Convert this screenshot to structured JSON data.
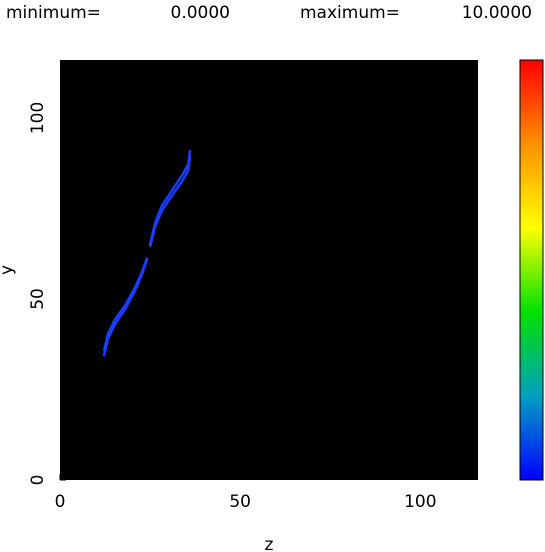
{
  "chart_data": {
    "type": "line",
    "minimum": {
      "label": "minimum=",
      "value": {
        "value": 0,
        "label": "0.0000"
      }
    },
    "maximum": {
      "label": "maximum=",
      "value": {
        "value": 10,
        "label": "10.0000"
      }
    },
    "xlabel": "z",
    "ylabel": "y",
    "x": [
      12.2,
      13.3,
      15.3,
      18.1,
      20.8,
      22.8,
      24.2,
      null,
      25.0,
      26.4,
      28.3,
      31.1,
      33.9,
      35.6,
      36.1
    ],
    "series": [
      {
        "color": "#1a3cff",
        "values": [
          34.2,
          38.9,
          43.1,
          47.2,
          52.2,
          56.9,
          61.1,
          null,
          64.4,
          70.0,
          74.4,
          78.6,
          82.5,
          85.6,
          89.4
        ]
      },
      {
        "color": "#1a3cff",
        "values": [
          35.6,
          40.3,
          44.4,
          48.3,
          53.1,
          57.5,
          61.4,
          null,
          65.0,
          71.1,
          75.8,
          80.0,
          84.2,
          87.2,
          91.1
        ]
      }
    ],
    "xlim": [
      0,
      116
    ],
    "ylim": [
      0,
      116
    ],
    "xticks": [
      0,
      50,
      100
    ],
    "yticks": [
      0,
      50,
      100
    ],
    "colormap": [
      "#0000ff",
      "#00a0c0",
      "#00e000",
      "#ffff00",
      "#ff9000",
      "#ff0000"
    ]
  }
}
